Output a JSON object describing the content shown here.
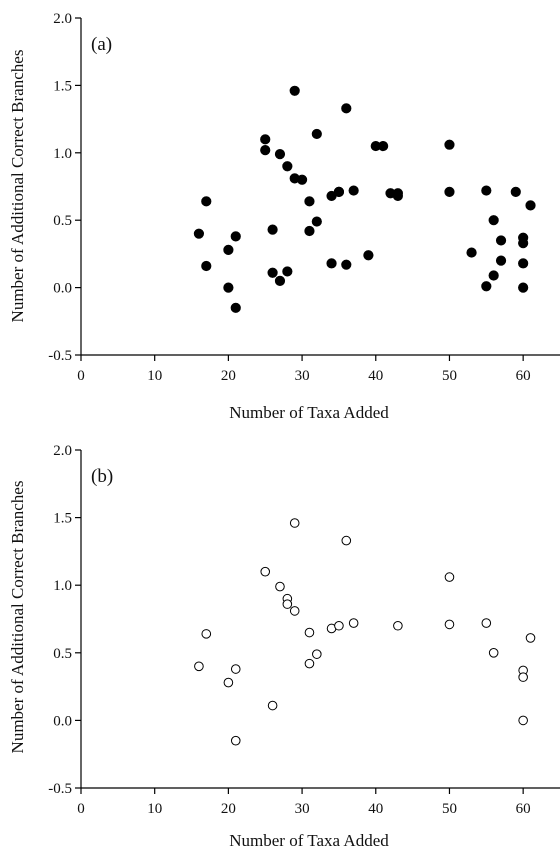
{
  "chart_data": [
    {
      "type": "scatter",
      "panel_label": "(a)",
      "xlabel": "Number of Taxa Added",
      "ylabel": "Number of Additional Correct Branches",
      "xlim": [
        0,
        65
      ],
      "ylim": [
        -0.5,
        2.0
      ],
      "xticks": [
        "0",
        "10",
        "20",
        "30",
        "40",
        "50",
        "60"
      ],
      "yticks": [
        "-0.5",
        "0.0",
        "0.5",
        "1.0",
        "1.5",
        "2.0"
      ],
      "marker": "filled-circle",
      "points": [
        [
          16,
          0.4
        ],
        [
          17,
          0.64
        ],
        [
          17,
          0.16
        ],
        [
          20,
          0.28
        ],
        [
          20,
          0.0
        ],
        [
          21,
          0.38
        ],
        [
          21,
          -0.15
        ],
        [
          25,
          1.1
        ],
        [
          25,
          1.02
        ],
        [
          26,
          0.43
        ],
        [
          26,
          0.11
        ],
        [
          27,
          0.99
        ],
        [
          27,
          0.05
        ],
        [
          28,
          0.9
        ],
        [
          28,
          0.12
        ],
        [
          29,
          1.46
        ],
        [
          29,
          0.81
        ],
        [
          30,
          0.8
        ],
        [
          31,
          0.64
        ],
        [
          31,
          0.42
        ],
        [
          32,
          1.14
        ],
        [
          32,
          0.49
        ],
        [
          34,
          0.68
        ],
        [
          34,
          0.18
        ],
        [
          35,
          0.71
        ],
        [
          35,
          0.71
        ],
        [
          36,
          1.33
        ],
        [
          36,
          0.17
        ],
        [
          37,
          0.72
        ],
        [
          39,
          0.24
        ],
        [
          40,
          1.05
        ],
        [
          41,
          1.05
        ],
        [
          42,
          0.7
        ],
        [
          43,
          0.7
        ],
        [
          43,
          0.68
        ],
        [
          50,
          1.06
        ],
        [
          50,
          0.71
        ],
        [
          53,
          0.26
        ],
        [
          55,
          0.72
        ],
        [
          55,
          0.01
        ],
        [
          56,
          0.5
        ],
        [
          56,
          0.09
        ],
        [
          57,
          0.35
        ],
        [
          57,
          0.2
        ],
        [
          59,
          0.71
        ],
        [
          60,
          0.37
        ],
        [
          60,
          0.33
        ],
        [
          60,
          0.18
        ],
        [
          60,
          0.0
        ],
        [
          61,
          0.61
        ]
      ]
    },
    {
      "type": "scatter",
      "panel_label": "(b)",
      "xlabel": "Number of Taxa Added",
      "ylabel": "Number of Additional Correct Branches",
      "xlim": [
        0,
        65
      ],
      "ylim": [
        -0.5,
        2.0
      ],
      "xticks": [
        "0",
        "10",
        "20",
        "30",
        "40",
        "50",
        "60"
      ],
      "yticks": [
        "-0.5",
        "0.0",
        "0.5",
        "1.0",
        "1.5",
        "2.0"
      ],
      "marker": "open-circle",
      "points": [
        [
          16,
          0.4
        ],
        [
          17,
          0.64
        ],
        [
          20,
          0.28
        ],
        [
          21,
          0.38
        ],
        [
          21,
          -0.15
        ],
        [
          25,
          1.1
        ],
        [
          26,
          0.11
        ],
        [
          27,
          0.99
        ],
        [
          28,
          0.9
        ],
        [
          28,
          0.86
        ],
        [
          29,
          1.46
        ],
        [
          29,
          0.81
        ],
        [
          31,
          0.65
        ],
        [
          31,
          0.42
        ],
        [
          32,
          0.49
        ],
        [
          34,
          0.68
        ],
        [
          35,
          0.7
        ],
        [
          36,
          1.33
        ],
        [
          37,
          0.72
        ],
        [
          43,
          0.7
        ],
        [
          50,
          1.06
        ],
        [
          50,
          0.71
        ],
        [
          55,
          0.72
        ],
        [
          56,
          0.5
        ],
        [
          60,
          0.37
        ],
        [
          60,
          0.32
        ],
        [
          60,
          0.0
        ],
        [
          61,
          0.61
        ]
      ]
    }
  ]
}
